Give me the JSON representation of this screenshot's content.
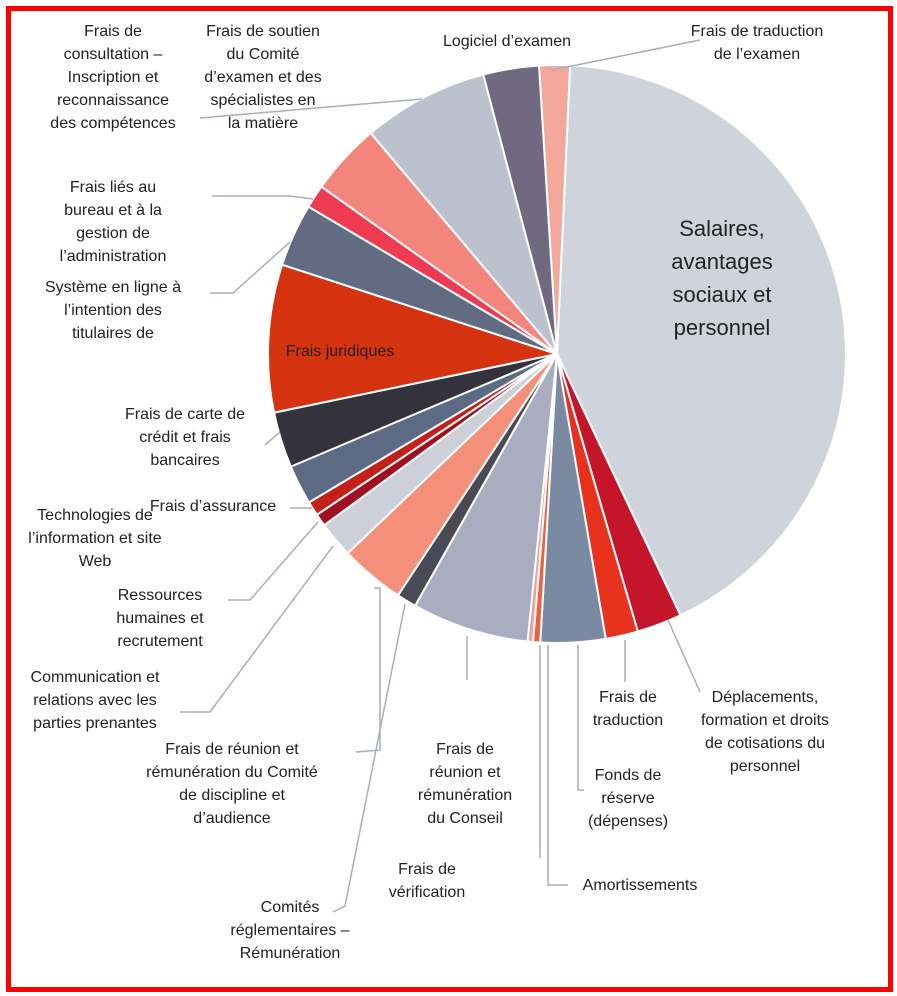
{
  "chart_data": {
    "type": "pie",
    "categories": [
      "Salaires, avantages sociaux et personnel",
      "Déplacements, formation et droits de cotisations du personnel",
      "Frais de traduction",
      "Fonds de réserve (dépenses)",
      "Amortissements",
      "Frais de vérification",
      "Frais de réunion et rémunération du Conseil",
      "Comités réglementaires – Rémunération",
      "Frais de réunion et rémunération du Comité de discipline et d’audience",
      "Communication et relations avec les parties prenantes",
      "Ressources humaines et recrutement",
      "Frais d’assurance",
      "Technologies de l’information et site Web",
      "Frais de carte de crédit et frais bancaires",
      "Frais juridiques",
      "Système en ligne à l’intention des titulaires de",
      "Frais liés au bureau et à la gestion de l’administration",
      "Frais de soutien du Comité d’examen et des spécialistes en la matière",
      "Frais de consultation – Inscription et reconnaissance des compétences",
      "Logiciel d’examen",
      "Frais de traduction de l’examen"
    ],
    "values": [
      42,
      2.5,
      1.8,
      3.6,
      0.4,
      0.3,
      6.5,
      1.1,
      3.6,
      2,
      0.7,
      0.8,
      2.2,
      3.1,
      8.2,
      3.5,
      1.3,
      4,
      7,
      3.1,
      1.7
    ],
    "colors": [
      "#cfd3dc",
      "#c5152a",
      "#e8321e",
      "#7b8aa3",
      "#f0623f",
      "#e9a2a0",
      "#a8aec0",
      "#4a4a56",
      "#f4907a",
      "#cdd0d8",
      "#a01020",
      "#c4201a",
      "#5c6a84",
      "#33323d",
      "#d5320f",
      "#616b82",
      "#ee3b52",
      "#f3857c",
      "#bcc1ce",
      "#6f6a80",
      "#f4a89c"
    ]
  }
}
